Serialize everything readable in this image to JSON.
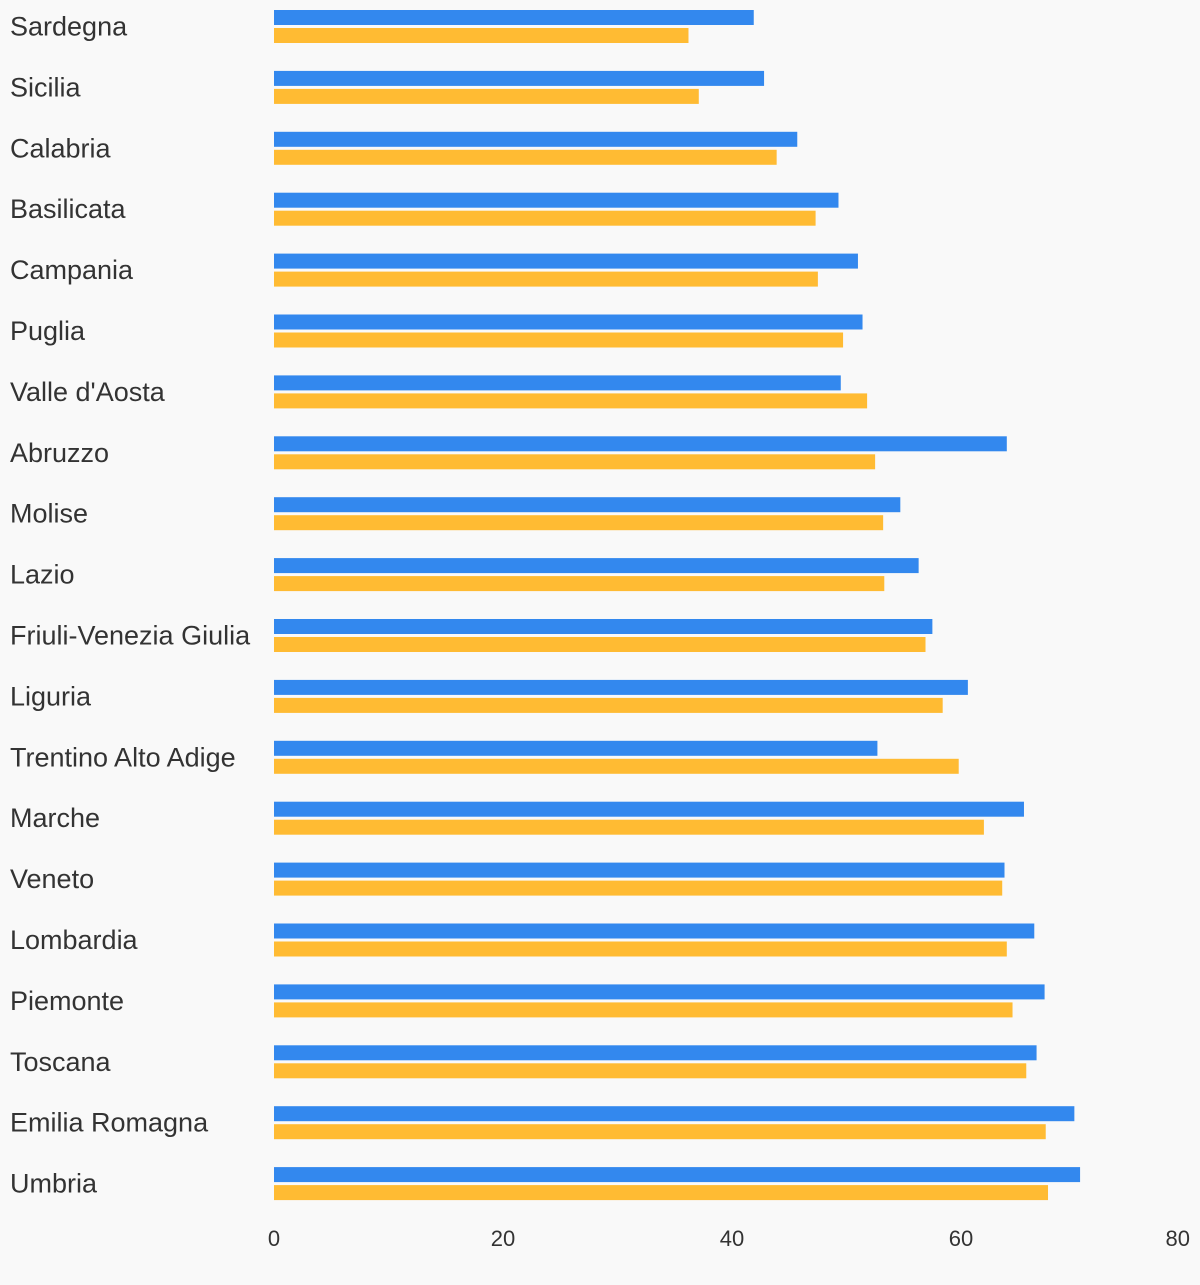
{
  "chart_data": {
    "type": "bar",
    "orientation": "horizontal",
    "categories": [
      "Sardegna",
      "Sicilia",
      "Calabria",
      "Basilicata",
      "Campania",
      "Puglia",
      "Valle d'Aosta",
      "Abruzzo",
      "Molise",
      "Lazio",
      "Friuli-Venezia Giulia",
      "Liguria",
      "Trentino Alto Adige",
      "Marche",
      "Veneto",
      "Lombardia",
      "Piemonte",
      "Toscana",
      "Emilia Romagna",
      "Umbria"
    ],
    "series": [
      {
        "color": "#3388ee",
        "values": [
          41.9,
          42.8,
          45.7,
          49.3,
          51.0,
          51.4,
          49.5,
          64.0,
          54.7,
          56.3,
          57.5,
          60.6,
          52.7,
          65.5,
          63.8,
          66.4,
          67.3,
          66.6,
          69.9,
          70.4
        ]
      },
      {
        "color": "#ffbb33",
        "values": [
          36.2,
          37.1,
          43.9,
          47.3,
          47.5,
          49.7,
          51.8,
          52.5,
          53.2,
          53.3,
          56.9,
          58.4,
          59.8,
          62.0,
          63.6,
          64.0,
          64.5,
          65.7,
          67.4,
          67.6
        ]
      }
    ],
    "xlim": [
      0,
      80
    ],
    "xticks": [
      "0",
      "20",
      "40",
      "60",
      "80"
    ],
    "title": "",
    "xlabel": "",
    "ylabel": "",
    "grid": false,
    "legend": "none"
  }
}
